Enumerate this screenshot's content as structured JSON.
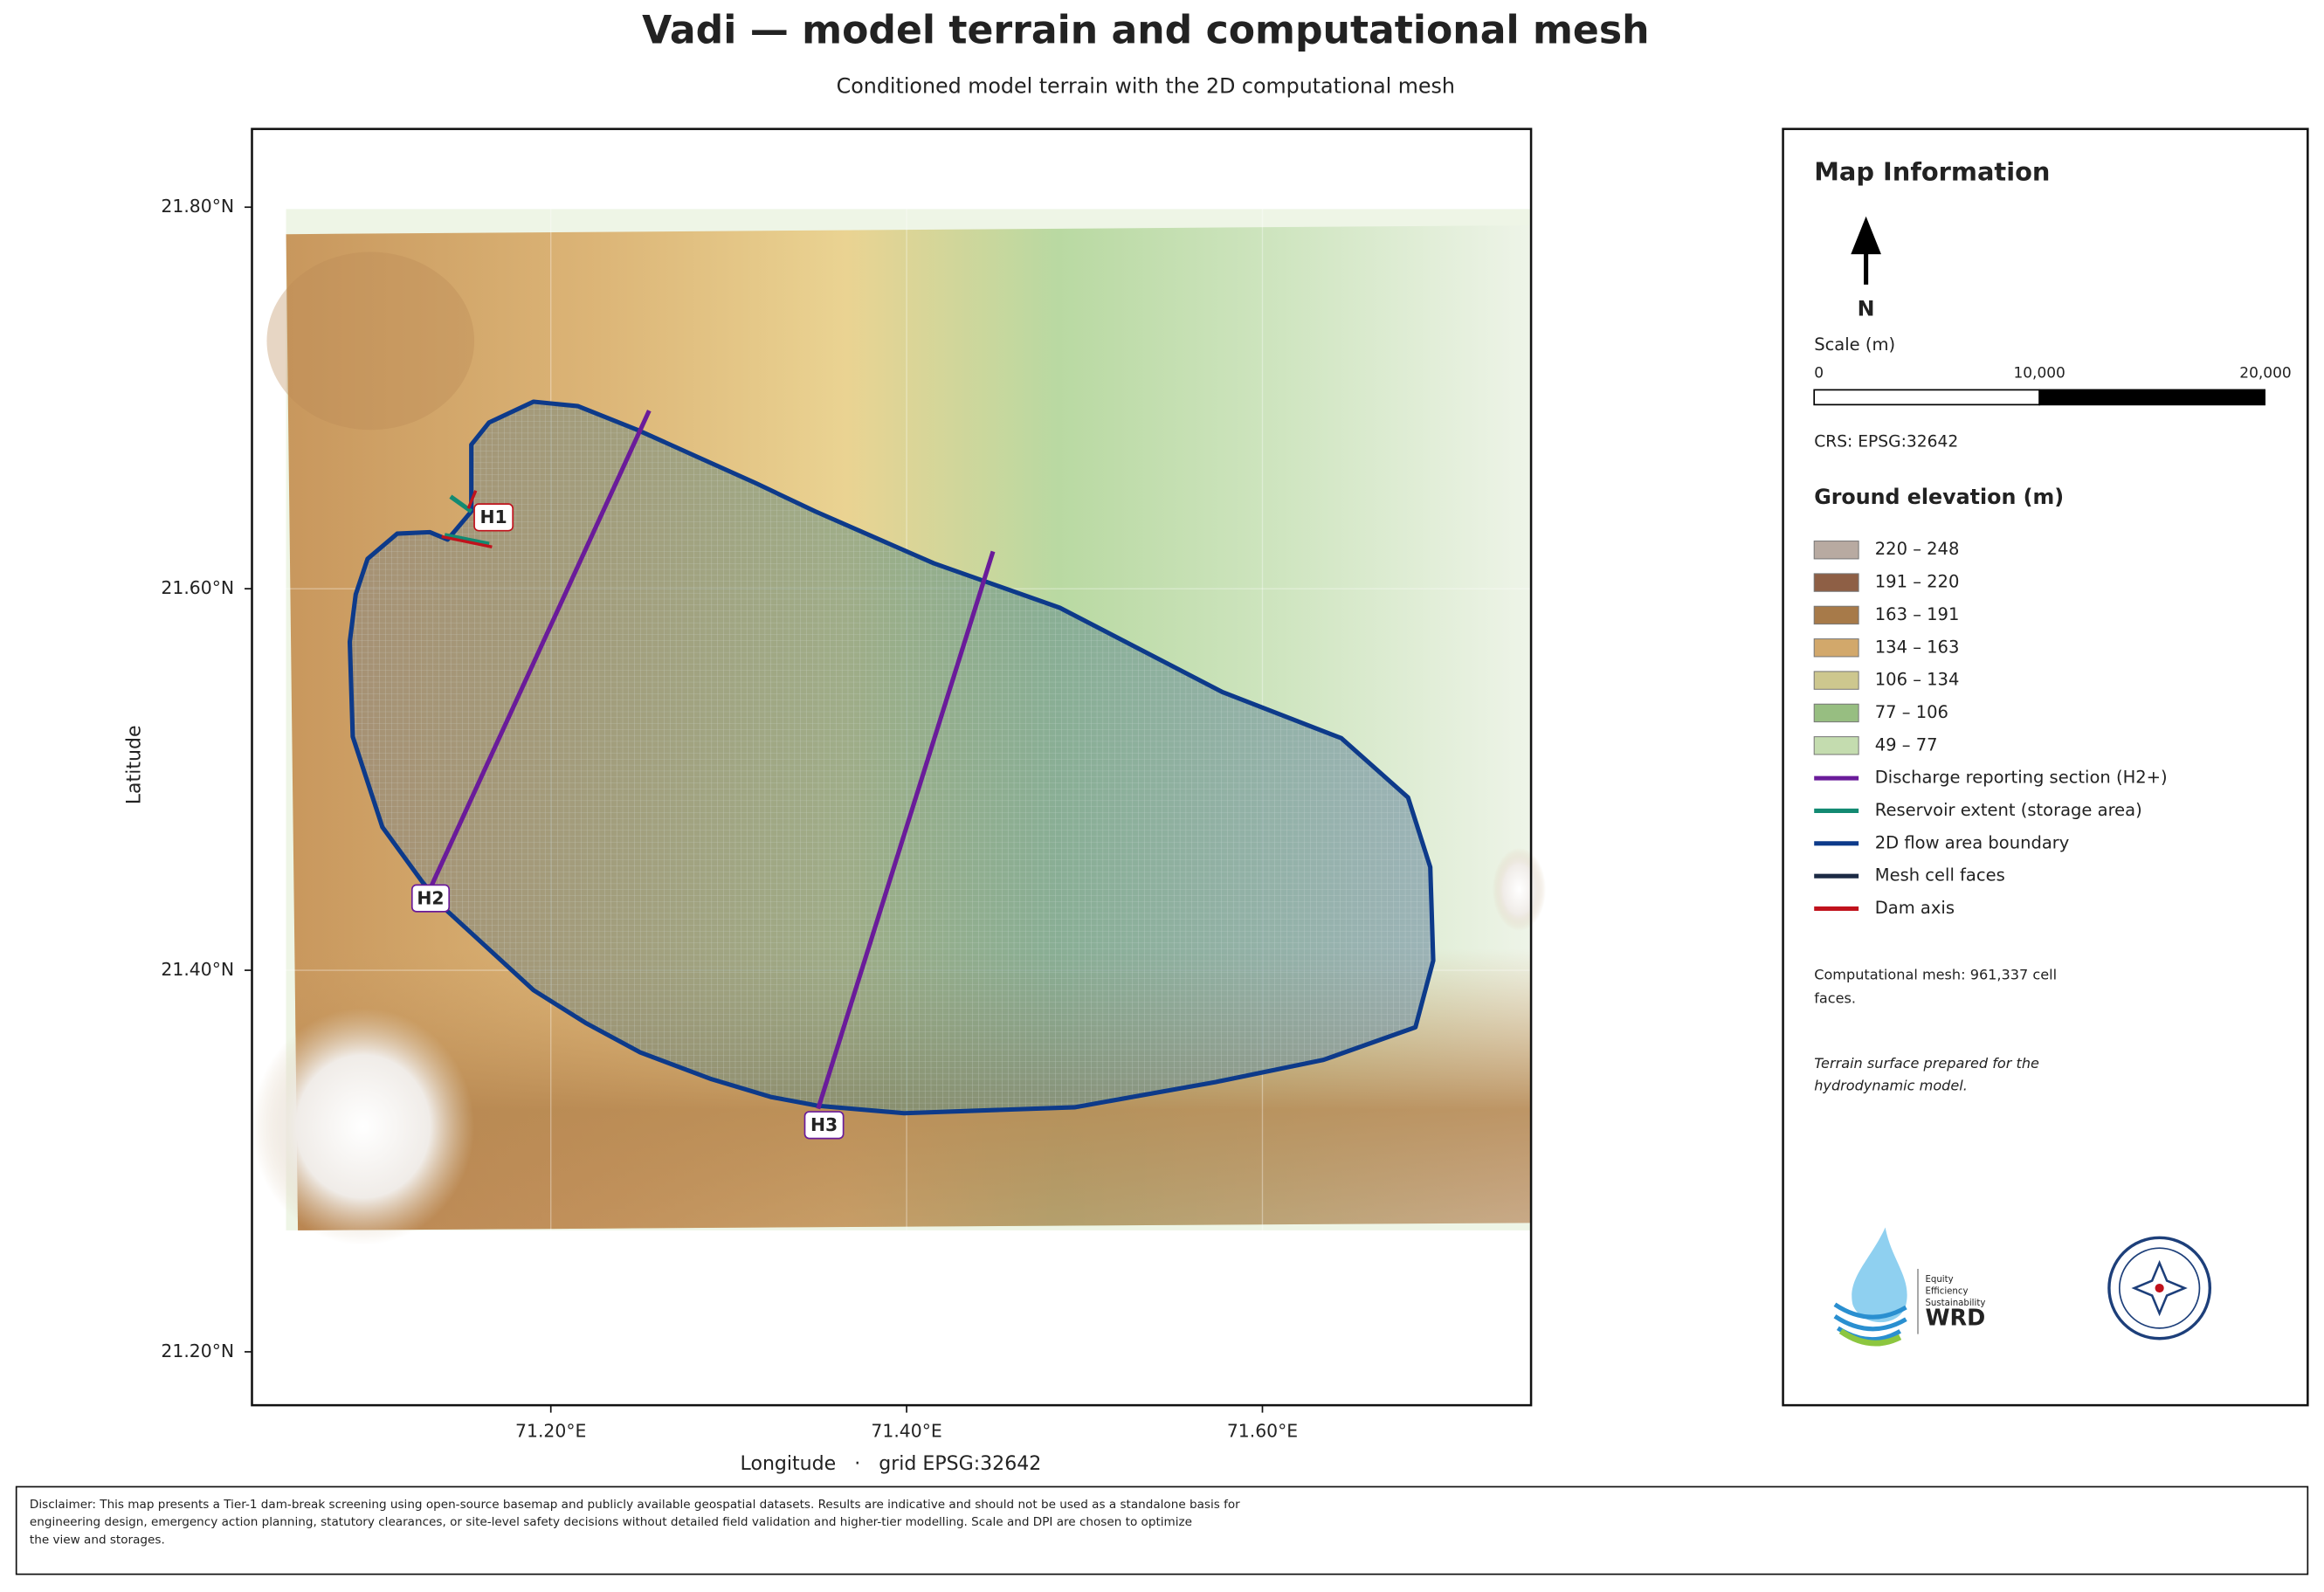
{
  "header": {
    "title": "Vadi — model terrain and computational mesh",
    "subtitle": "Conditioned model terrain with the 2D computational mesh"
  },
  "map": {
    "xlim": [
      71.032,
      71.751
    ],
    "ylim": [
      21.172,
      21.841
    ],
    "xticks": [
      {
        "value": 71.2,
        "label": "71.20°E"
      },
      {
        "value": 71.4,
        "label": "71.40°E"
      },
      {
        "value": 71.6,
        "label": "71.60°E"
      }
    ],
    "yticks": [
      {
        "value": 21.2,
        "label": "21.20°N"
      },
      {
        "value": 21.4,
        "label": "21.40°N"
      },
      {
        "value": 21.6,
        "label": "21.60°N"
      },
      {
        "value": 21.8,
        "label": "21.80°N"
      }
    ],
    "xlabel": "Longitude   ·   grid EPSG:32642",
    "ylabel": "Latitude",
    "markers": [
      "H1",
      "H2",
      "H3"
    ]
  },
  "legend": {
    "title": "Map Information",
    "north": "N",
    "scale_title": "Scale (m)",
    "scale_ticks": [
      0,
      {
        "value": 10000,
        "label": "10,000"
      },
      {
        "value": 20000,
        "label": "20,000"
      }
    ],
    "crs": "CRS: EPSG:32642",
    "elevation_title": "Ground elevation (m)",
    "items": [
      {
        "name": "220 – 248",
        "kind": "patch",
        "color": "#b8aaa1"
      },
      {
        "name": "191 – 220",
        "kind": "patch",
        "color": "#8e5f45"
      },
      {
        "name": "163 – 191",
        "kind": "patch",
        "color": "#a77a49"
      },
      {
        "name": "134 – 163",
        "kind": "patch",
        "color": "#d2a86b"
      },
      {
        "name": "106 – 134",
        "kind": "patch",
        "color": "#cdc78e"
      },
      {
        "name": "77 – 106",
        "kind": "patch",
        "color": "#97be81"
      },
      {
        "name": "49 – 77",
        "kind": "patch",
        "color": "#c4dcaf"
      },
      {
        "name": "Discharge reporting section (H2+)",
        "kind": "line",
        "color": "#6a1b9a"
      },
      {
        "name": "Reservoir extent (storage area)",
        "kind": "line",
        "color": "#138a72"
      },
      {
        "name": "2D flow area boundary",
        "kind": "line",
        "color": "#0d3a8a"
      },
      {
        "name": "Mesh cell faces",
        "kind": "line",
        "color": "#1b2a44"
      },
      {
        "name": "Dam axis",
        "kind": "line",
        "color": "#c0121c"
      }
    ],
    "mesh_note": [
      "Computational mesh: 961,337 cell",
      "faces."
    ],
    "terrain_note": [
      "Terrain surface prepared for the",
      "hydrodynamic model."
    ],
    "logo_tagline": [
      "Equity",
      "Efficiency",
      "Sustainability"
    ],
    "logo_name": "WRD"
  },
  "disclaimer": [
    "Disclaimer: This map presents a Tier-1 dam-break screening using open-source basemap and publicly available geospatial datasets. Results are indicative and should not be used as a standalone basis for",
    "engineering design, emergency action planning, statutory clearances, or site-level safety decisions without detailed field validation and higher-tier modelling. Scale and DPI are chosen to optimize",
    "the view and storages."
  ]
}
